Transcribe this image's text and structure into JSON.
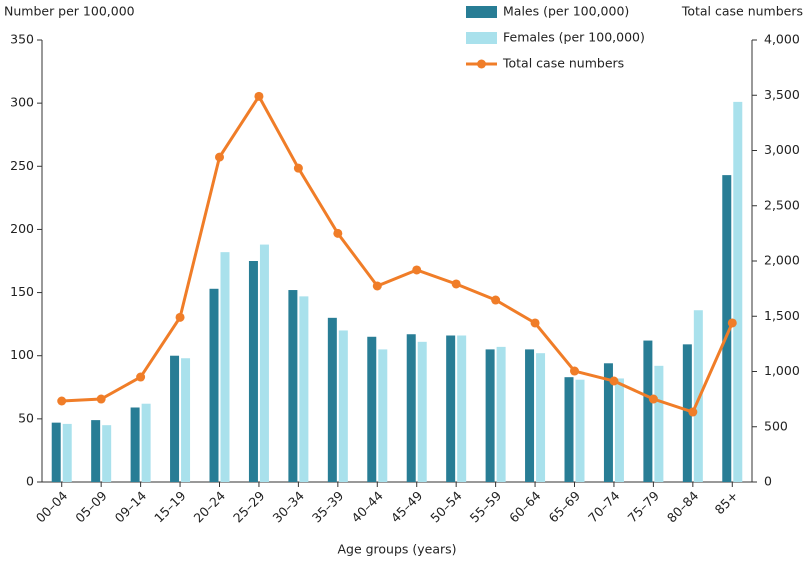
{
  "chart_data": {
    "type": "bar-line",
    "ylabel": "Number per 100,000",
    "y2label": "Total case numbers",
    "xlabel": "Age groups (years)",
    "categories": [
      "00–04",
      "05–09",
      "09–14",
      "15–19",
      "20–24",
      "25–29",
      "30–34",
      "35–39",
      "40–44",
      "45–49",
      "50–54",
      "55–59",
      "60–64",
      "65–69",
      "70–74",
      "75–79",
      "80–84",
      "85+"
    ],
    "series": [
      {
        "name": "Males (per 100,000)",
        "color": "#287d95",
        "type": "bar",
        "values": [
          47,
          49,
          59,
          100,
          153,
          175,
          152,
          130,
          115,
          117,
          116,
          105,
          105,
          83,
          94,
          112,
          109,
          243
        ]
      },
      {
        "name": "Females (per 100,000)",
        "color": "#a9e1ec",
        "type": "bar",
        "values": [
          46,
          45,
          62,
          98,
          182,
          188,
          147,
          120,
          105,
          111,
          116,
          107,
          102,
          81,
          82,
          92,
          136,
          301
        ]
      },
      {
        "name": "Total case numbers",
        "color": "#f07d28",
        "type": "line",
        "axis": "y2",
        "values": [
          733,
          751,
          950,
          1490,
          2940,
          3490,
          2840,
          2250,
          1774,
          1919,
          1792,
          1647,
          1439,
          1004,
          914,
          751,
          633,
          1439
        ]
      }
    ],
    "ylim": [
      0,
      350
    ],
    "yticks": [
      0,
      50,
      100,
      150,
      200,
      250,
      300,
      350
    ],
    "y2lim": [
      0,
      4000
    ],
    "y2ticks": [
      0,
      500,
      {
        "value": 1000,
        "label": "1,000"
      },
      {
        "value": 1500,
        "label": "1,500"
      },
      {
        "value": 2000,
        "label": "2,000"
      },
      {
        "value": 2500,
        "label": "2,500"
      },
      {
        "value": 3000,
        "label": "3,000"
      },
      {
        "value": 3500,
        "label": "3,500"
      },
      {
        "value": 4000,
        "label": "4,000"
      }
    ]
  }
}
